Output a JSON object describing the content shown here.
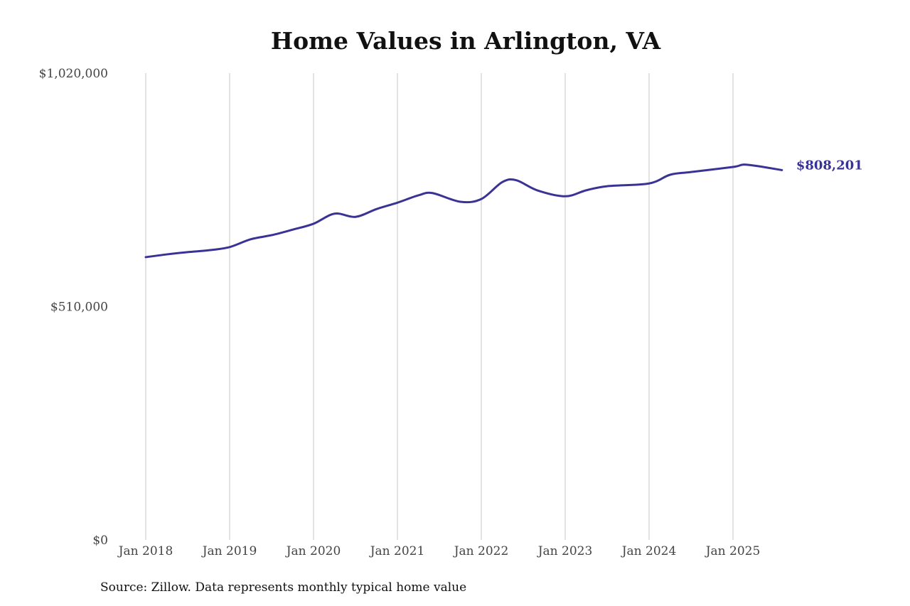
{
  "chart_data": {
    "type": "line",
    "title": "Home Values in Arlington, VA",
    "source": "Source: Zillow. Data represents monthly typical home value",
    "xlabel": "",
    "ylabel": "",
    "ylim": [
      0,
      1020000
    ],
    "y_ticks": [
      0,
      510000,
      1020000
    ],
    "y_tick_labels": [
      "$0",
      "$510,000",
      "$1,020,000"
    ],
    "x_ticks": [
      "2018-01",
      "2019-01",
      "2020-01",
      "2021-01",
      "2022-01",
      "2023-01",
      "2024-01",
      "2025-01"
    ],
    "x_tick_labels": [
      "Jan 2018",
      "Jan 2019",
      "Jan 2020",
      "Jan 2021",
      "Jan 2022",
      "Jan 2023",
      "Jan 2024",
      "Jan 2025"
    ],
    "grid": "vertical",
    "line_color": "#3a3396",
    "end_label": "$808,201",
    "series": [
      {
        "x": [
          "2018-01",
          "2018-04",
          "2018-07",
          "2018-10",
          "2019-01",
          "2019-04",
          "2019-07",
          "2019-10",
          "2020-01",
          "2020-04",
          "2020-07",
          "2020-10",
          "2021-01",
          "2021-04",
          "2021-06",
          "2021-10",
          "2022-01",
          "2022-04",
          "2022-06",
          "2022-09",
          "2023-01",
          "2023-04",
          "2023-07",
          "2024-01",
          "2024-04",
          "2024-07",
          "2025-01",
          "2025-03",
          "2025-08"
        ],
        "values": [
          618000,
          624000,
          629000,
          633000,
          640000,
          657000,
          666000,
          678000,
          691000,
          713000,
          706000,
          723000,
          737000,
          753000,
          758000,
          739000,
          745000,
          782000,
          786000,
          764000,
          751000,
          764000,
          773000,
          779000,
          798000,
          804000,
          815000,
          820000,
          808201
        ]
      }
    ]
  }
}
